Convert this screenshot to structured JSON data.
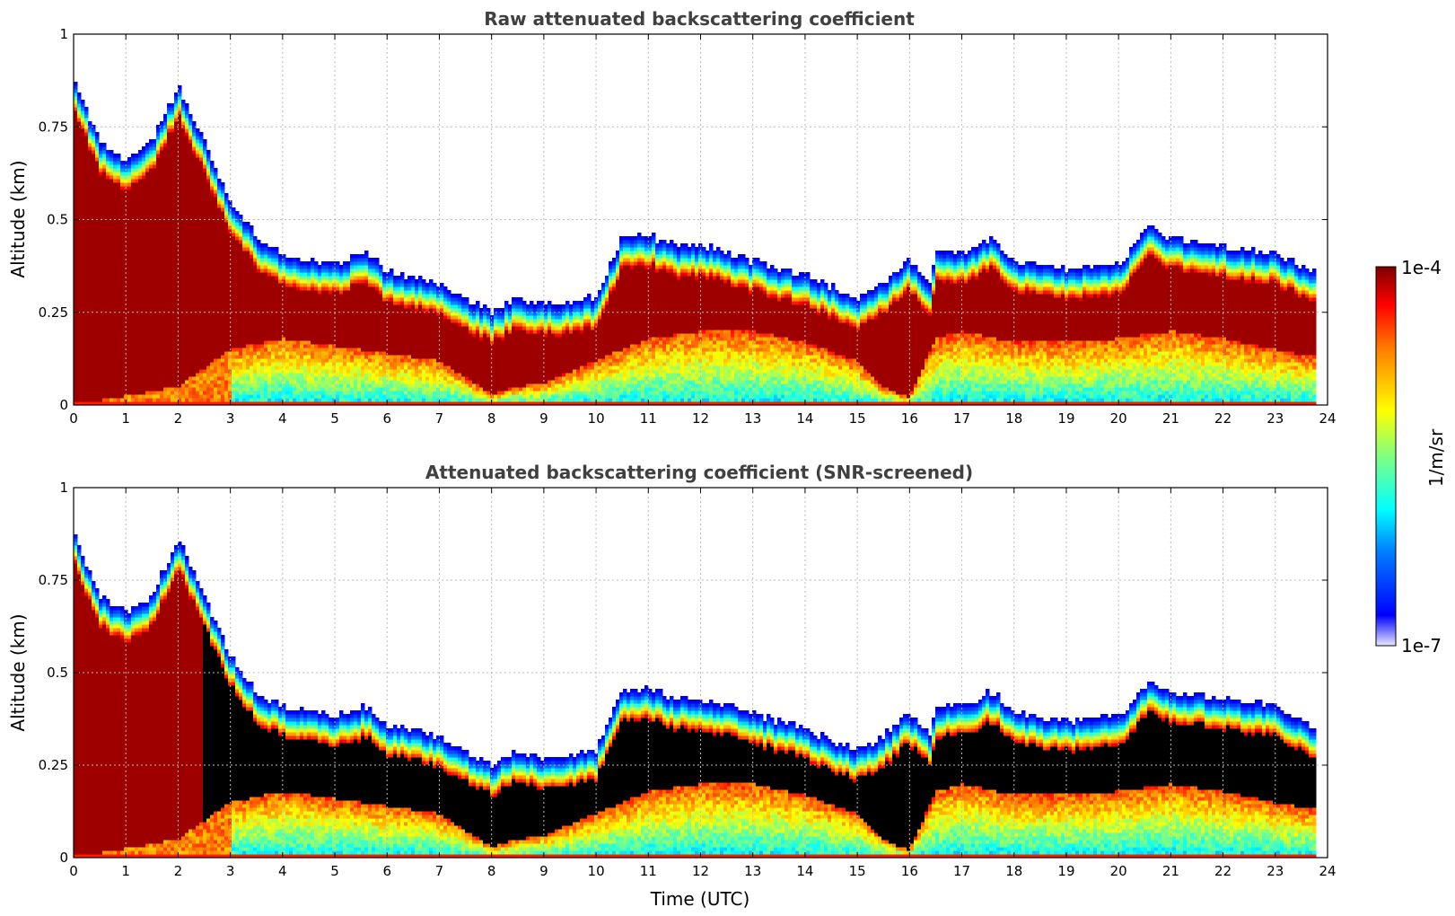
{
  "colors": {
    "jet": [
      "#00008f",
      "#0000ff",
      "#0080ff",
      "#00ffff",
      "#80ff80",
      "#ffff00",
      "#ff8000",
      "#ff0000",
      "#800000"
    ],
    "low_fade": "#e8e8ff",
    "saturated": "#000000",
    "title_color": "#404040"
  },
  "colorbar": {
    "label": "1/m/sr",
    "max_label": "1e-4",
    "min_label": "1e-7",
    "min_value": 1e-07,
    "max_value": 0.0001,
    "scale": "log"
  },
  "chart_data": [
    {
      "type": "heatmap",
      "title": "Raw attenuated backscattering coefficient",
      "xlabel": "",
      "ylabel": "Altitude (km)",
      "xlim": [
        0,
        24
      ],
      "ylim": [
        0,
        1
      ],
      "x_ticks": [
        "0",
        "1",
        "2",
        "3",
        "4",
        "5",
        "6",
        "7",
        "8",
        "9",
        "10",
        "11",
        "12",
        "13",
        "14",
        "15",
        "16",
        "17",
        "18",
        "19",
        "20",
        "21",
        "22",
        "23",
        "24"
      ],
      "y_ticks": [
        "0",
        "0.25",
        "0.5",
        "0.75",
        "1"
      ],
      "grid": true,
      "screened": false,
      "layer_top_km": [
        [
          0,
          0.85
        ],
        [
          0.5,
          0.68
        ],
        [
          1,
          0.63
        ],
        [
          1.5,
          0.68
        ],
        [
          2,
          0.83
        ],
        [
          2.5,
          0.68
        ],
        [
          3,
          0.52
        ],
        [
          3.5,
          0.42
        ],
        [
          4,
          0.38
        ],
        [
          5,
          0.35
        ],
        [
          5.6,
          0.38
        ],
        [
          6,
          0.33
        ],
        [
          7,
          0.3
        ],
        [
          7.5,
          0.26
        ],
        [
          8,
          0.22
        ],
        [
          8.5,
          0.26
        ],
        [
          9,
          0.24
        ],
        [
          10,
          0.26
        ],
        [
          10.5,
          0.42
        ],
        [
          11,
          0.43
        ],
        [
          11.5,
          0.4
        ],
        [
          12,
          0.4
        ],
        [
          13,
          0.36
        ],
        [
          14,
          0.32
        ],
        [
          15,
          0.26
        ],
        [
          15.5,
          0.3
        ],
        [
          16,
          0.36
        ],
        [
          16.4,
          0.3
        ],
        [
          16.5,
          0.38
        ],
        [
          17,
          0.38
        ],
        [
          17.6,
          0.42
        ],
        [
          18,
          0.36
        ],
        [
          19,
          0.34
        ],
        [
          20,
          0.35
        ],
        [
          20.6,
          0.45
        ],
        [
          21,
          0.42
        ],
        [
          22,
          0.4
        ],
        [
          23,
          0.38
        ],
        [
          23.8,
          0.32
        ]
      ],
      "layer_base_km": [
        [
          0,
          0.0
        ],
        [
          2,
          0.05
        ],
        [
          3,
          0.15
        ],
        [
          4,
          0.18
        ],
        [
          5,
          0.16
        ],
        [
          6,
          0.14
        ],
        [
          7,
          0.12
        ],
        [
          8,
          0.03
        ],
        [
          8.5,
          0.05
        ],
        [
          9,
          0.06
        ],
        [
          10,
          0.12
        ],
        [
          11,
          0.18
        ],
        [
          12,
          0.2
        ],
        [
          13,
          0.2
        ],
        [
          14,
          0.17
        ],
        [
          15,
          0.12
        ],
        [
          15.5,
          0.05
        ],
        [
          16,
          0.02
        ],
        [
          16.5,
          0.18
        ],
        [
          17,
          0.2
        ],
        [
          18,
          0.17
        ],
        [
          19,
          0.17
        ],
        [
          20,
          0.18
        ],
        [
          21,
          0.2
        ],
        [
          22,
          0.18
        ],
        [
          23,
          0.15
        ],
        [
          23.8,
          0.13
        ]
      ],
      "data_end_utc": 23.8
    },
    {
      "type": "heatmap",
      "title": "Attenuated backscattering coefficient (SNR-screened)",
      "xlabel": "Time (UTC)",
      "ylabel": "Altitude (km)",
      "xlim": [
        0,
        24
      ],
      "ylim": [
        0,
        1
      ],
      "x_ticks": [
        "0",
        "1",
        "2",
        "3",
        "4",
        "5",
        "6",
        "7",
        "8",
        "9",
        "10",
        "11",
        "12",
        "13",
        "14",
        "15",
        "16",
        "17",
        "18",
        "19",
        "20",
        "21",
        "22",
        "23",
        "24"
      ],
      "y_ticks": [
        "0",
        "0.25",
        "0.5",
        "0.75",
        "1"
      ],
      "grid": true,
      "screened": true,
      "data_end_utc": 23.8
    }
  ]
}
